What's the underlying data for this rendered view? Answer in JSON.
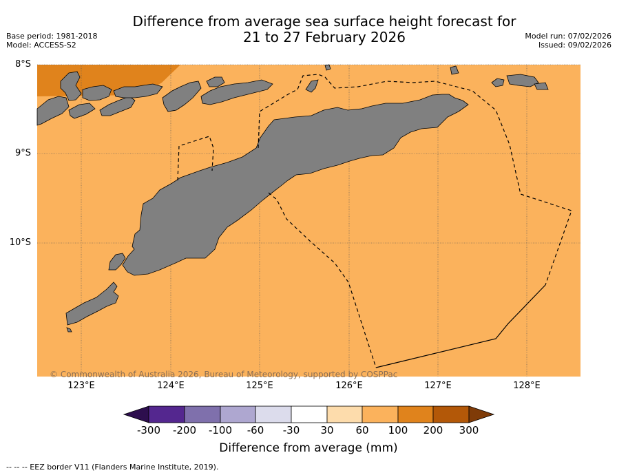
{
  "title": {
    "line1": "Difference from average sea surface height forecast for",
    "line2": "21 to 27 February 2026"
  },
  "meta_left": {
    "base_period": "Base period: 1981-2018",
    "model": "Model: ACCESS-S2"
  },
  "meta_right": {
    "model_run": "Model run: 07/02/2026",
    "issued": "Issued: 09/02/2026"
  },
  "axes": {
    "lat_labels": [
      "8°S",
      "9°S",
      "10°S"
    ],
    "lon_labels": [
      "123°E",
      "124°E",
      "125°E",
      "126°E",
      "127°E",
      "128°E"
    ]
  },
  "map": {
    "dominant_category": "60 to 100",
    "corner_category": "100 to 200",
    "land_color": "#808080",
    "eez_line_style": "dashed"
  },
  "copyright": "© Commonwealth of Australia 2026, Bureau of Meteorology, supported by COSPPac",
  "colorbar": {
    "tick_labels": [
      "-300",
      "-200",
      "-100",
      "-60",
      "-30",
      "30",
      "60",
      "100",
      "200",
      "300"
    ],
    "colors": [
      "#2d0e4e",
      "#54278f",
      "#7f70ac",
      "#aea7d0",
      "#dcdcec",
      "#ffffff",
      "#fddcac",
      "#fbb25c",
      "#e0831c",
      "#b35808",
      "#7f3b08"
    ],
    "label": "Difference from average (mm)"
  },
  "footnote": "--  --  -- EEZ border V11 (Flanders Marine Institute, 2019)."
}
